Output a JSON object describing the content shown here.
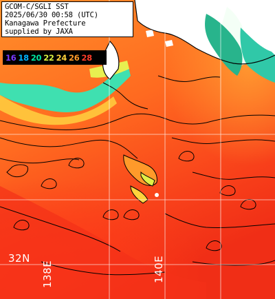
{
  "header": {
    "line1": "GCOM-C/SGLI SST",
    "line2": "2025/06/30 00:58 (UTC)",
    "line3": "Kanagawa Prefecture",
    "line4": "supplied by JAXA"
  },
  "legend": {
    "labels": [
      "16",
      "18",
      "20",
      "22",
      "24",
      "26",
      "28"
    ],
    "colors": [
      "#7a3bff",
      "#00b4ff",
      "#00e6a0",
      "#d8f040",
      "#ffd23c",
      "#ff9a28",
      "#ff3c28"
    ]
  },
  "grid": {
    "lat_label": "32N",
    "lon_labels": [
      "138E",
      "140E"
    ]
  },
  "colors": {
    "land": "#ffffff",
    "ocean_warm": "#ff5a1e",
    "ocean_hot": "#f02a14",
    "ocean_mid": "#ff8a28",
    "coastal_cool": "#40e6b4",
    "contour": "#000000",
    "gridline": "#ffffff"
  }
}
